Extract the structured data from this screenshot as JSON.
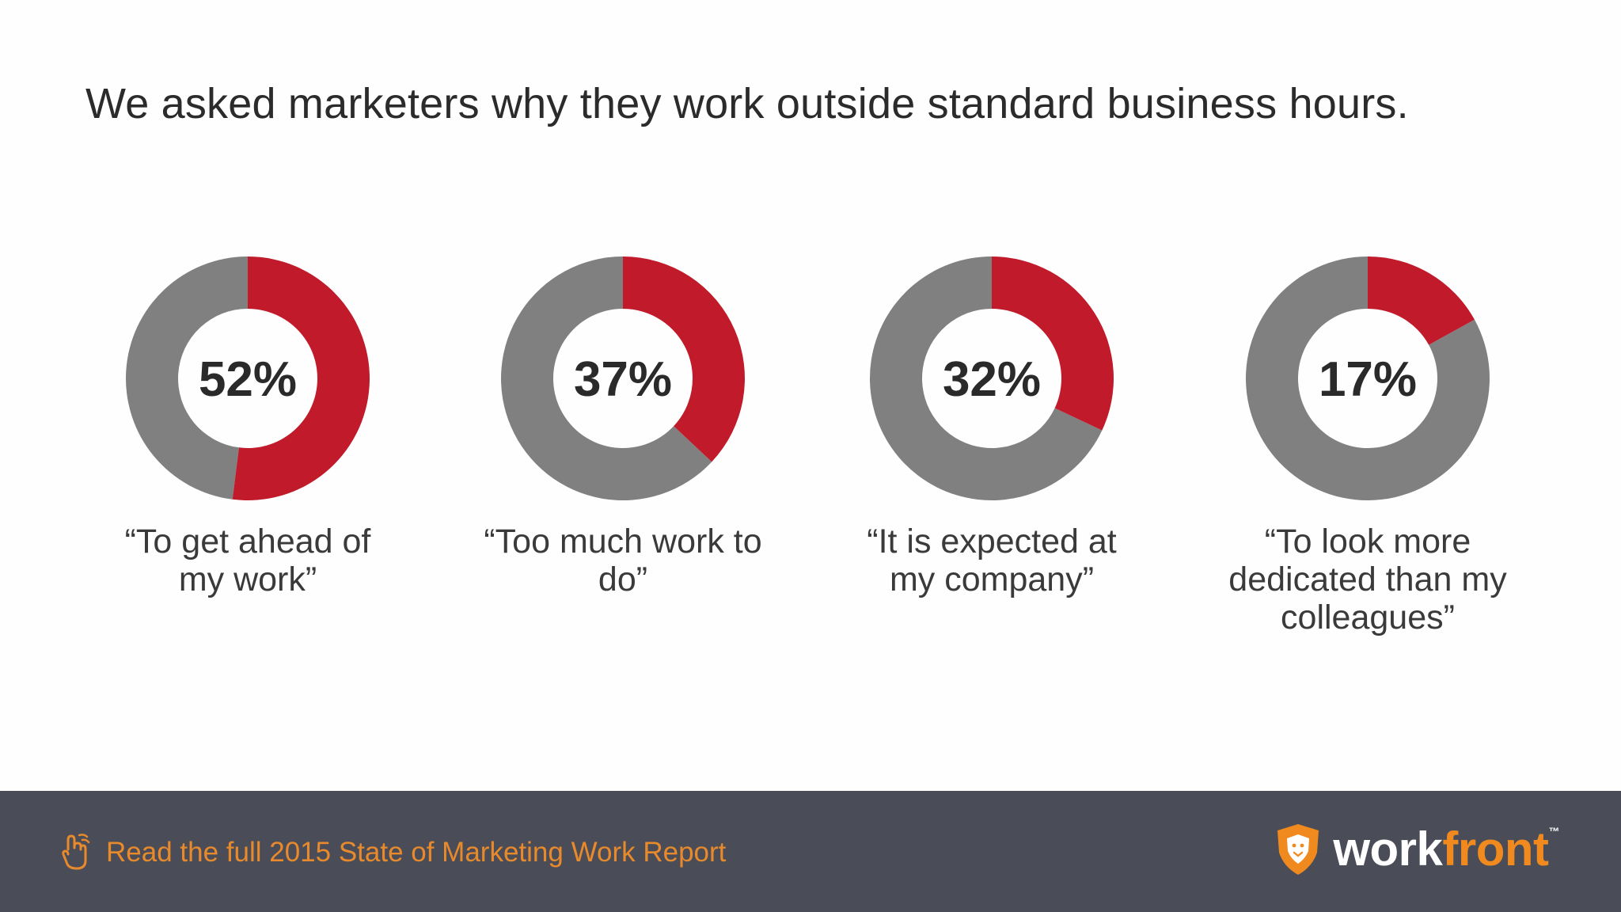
{
  "title": "We asked marketers why they work outside standard business hours.",
  "colors": {
    "highlight": "#c01a2b",
    "remainder": "#808080",
    "footer_bg": "#4a4d57",
    "cta_text": "#e88a2c",
    "brand_orange": "#f08a1f"
  },
  "chart_data": {
    "type": "pie",
    "variant": "donut",
    "title": "We asked marketers why they work outside standard business hours.",
    "unit": "%",
    "items": [
      {
        "value": 52,
        "label": "52%",
        "caption": "“To get ahead of my work”"
      },
      {
        "value": 37,
        "label": "37%",
        "caption": "“Too much work to do”"
      },
      {
        "value": 32,
        "label": "32%",
        "caption": "“It is expected at my company”"
      },
      {
        "value": 17,
        "label": "17%",
        "caption": "“To look more dedicated than my colleagues”"
      }
    ]
  },
  "footer": {
    "cta_text": "Read the full 2015 State of Marketing Work Report",
    "cta_icon": "pointer-hand-icon",
    "brand_name_part1": "work",
    "brand_name_part2": "front",
    "brand_mark": "™",
    "brand_icon": "lion-shield-icon"
  }
}
